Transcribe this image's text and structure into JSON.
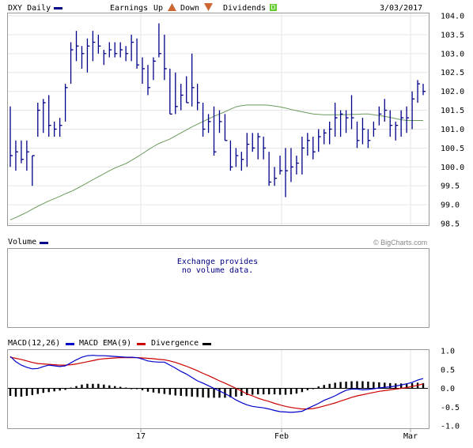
{
  "header": {
    "symbol": "DXY Daily",
    "earnings_label": "Earnings",
    "up_label": "Up",
    "down_label": "Down",
    "dividends_label": "Dividends",
    "up_badge": "E",
    "down_badge": "E",
    "div_badge": "D",
    "date": "3/03/2017"
  },
  "volume_panel": {
    "title": "Volume",
    "message_line1": "Exchange provides",
    "message_line2": "no volume data.",
    "brand": "© BigCharts.com"
  },
  "macd_panel": {
    "title": "MACD(12,26)",
    "macd_label": "MACD",
    "ema_label": "EMA(9)",
    "divergence_label": "Divergence"
  },
  "colors": {
    "price_bar": "#00008b",
    "moving_average": "#6b9a5b",
    "macd": "#0000cc",
    "ema": "#cc0000",
    "divergence": "#000000",
    "earnings_up": "#cc6633",
    "dividend": "#66cc33"
  },
  "chart_data": [
    {
      "type": "ohlc",
      "name": "price",
      "ylim": [
        98.5,
        104.0
      ],
      "yticks": [
        "104.0",
        "103.5",
        "103.0",
        "102.5",
        "102.0",
        "101.5",
        "101.0",
        "100.5",
        "100.0",
        "99.5",
        "99.0",
        "98.5"
      ],
      "xticks": [
        "17",
        "Feb",
        "Mar"
      ],
      "bars": [
        [
          101.6,
          100.0,
          100.3
        ],
        [
          100.7,
          99.9,
          100.4
        ],
        [
          100.7,
          100.1,
          100.2
        ],
        [
          100.7,
          99.9,
          100.4
        ],
        [
          100.3,
          99.5,
          100.3
        ],
        [
          101.7,
          100.8,
          101.5
        ],
        [
          101.8,
          100.9,
          101.7
        ],
        [
          101.9,
          100.8,
          101.1
        ],
        [
          101.2,
          100.8,
          101.0
        ],
        [
          101.3,
          100.8,
          101.1
        ],
        [
          102.2,
          101.2,
          102.1
        ],
        [
          103.3,
          102.2,
          103.1
        ],
        [
          103.6,
          102.8,
          103.2
        ],
        [
          103.2,
          102.6,
          103.0
        ],
        [
          103.4,
          102.5,
          103.2
        ],
        [
          103.6,
          102.8,
          103.3
        ],
        [
          103.5,
          103.0,
          103.2
        ],
        [
          103.1,
          102.7,
          103.0
        ],
        [
          103.3,
          102.9,
          103.1
        ],
        [
          103.3,
          102.9,
          103.0
        ],
        [
          103.3,
          102.9,
          103.1
        ],
        [
          103.2,
          102.8,
          103.0
        ],
        [
          103.5,
          102.8,
          103.3
        ],
        [
          103.4,
          102.6,
          102.7
        ],
        [
          102.9,
          102.2,
          102.6
        ],
        [
          102.7,
          101.9,
          102.1
        ],
        [
          102.9,
          102.3,
          102.8
        ],
        [
          103.8,
          102.9,
          103.0
        ],
        [
          103.5,
          102.3,
          102.6
        ],
        [
          102.6,
          101.4,
          101.4
        ],
        [
          102.5,
          101.4,
          101.6
        ],
        [
          102.2,
          101.5,
          101.9
        ],
        [
          102.4,
          101.7,
          101.7
        ],
        [
          103.0,
          101.6,
          102.1
        ],
        [
          102.2,
          101.5,
          101.7
        ],
        [
          101.7,
          100.8,
          101.0
        ],
        [
          101.4,
          100.9,
          101.2
        ],
        [
          101.6,
          100.3,
          100.4
        ],
        [
          101.5,
          100.9,
          101.2
        ],
        [
          101.4,
          100.7,
          100.7
        ],
        [
          100.7,
          99.9,
          100.0
        ],
        [
          100.5,
          100.0,
          100.3
        ],
        [
          100.4,
          99.9,
          100.2
        ],
        [
          100.9,
          100.0,
          100.6
        ],
        [
          100.9,
          100.4,
          100.5
        ],
        [
          100.9,
          100.2,
          100.8
        ],
        [
          100.8,
          100.2,
          100.5
        ],
        [
          100.4,
          99.5,
          99.6
        ],
        [
          100.0,
          99.5,
          99.7
        ],
        [
          100.3,
          99.8,
          99.9
        ],
        [
          100.5,
          99.2,
          99.9
        ],
        [
          100.5,
          99.6,
          100.0
        ],
        [
          100.3,
          99.8,
          100.1
        ],
        [
          100.8,
          99.8,
          100.5
        ],
        [
          100.9,
          100.3,
          100.7
        ],
        [
          100.8,
          100.2,
          100.4
        ],
        [
          101.0,
          100.4,
          100.8
        ],
        [
          101.0,
          100.6,
          100.9
        ],
        [
          101.2,
          100.6,
          101.0
        ],
        [
          101.7,
          100.8,
          101.3
        ],
        [
          101.5,
          100.8,
          101.4
        ],
        [
          101.5,
          100.9,
          101.3
        ],
        [
          101.9,
          101.0,
          101.3
        ],
        [
          101.2,
          100.5,
          100.7
        ],
        [
          101.3,
          100.6,
          101.0
        ],
        [
          101.0,
          100.5,
          100.7
        ],
        [
          101.2,
          100.8,
          101.0
        ],
        [
          101.6,
          101.1,
          101.4
        ],
        [
          101.8,
          101.2,
          101.5
        ],
        [
          101.5,
          100.8,
          101.1
        ],
        [
          101.2,
          100.7,
          101.1
        ],
        [
          101.5,
          100.8,
          101.3
        ],
        [
          101.6,
          100.9,
          101.3
        ],
        [
          102.0,
          101.0,
          101.8
        ],
        [
          102.3,
          101.7,
          102.2
        ],
        [
          102.2,
          101.9,
          102.0
        ]
      ],
      "moving_average": [
        98.6,
        98.66,
        98.73,
        98.8,
        98.88,
        98.96,
        99.03,
        99.1,
        99.16,
        99.22,
        99.29,
        99.35,
        99.42,
        99.5,
        99.58,
        99.66,
        99.74,
        99.82,
        99.9,
        99.97,
        100.03,
        100.09,
        100.17,
        100.26,
        100.35,
        100.45,
        100.54,
        100.62,
        100.68,
        100.74,
        100.82,
        100.9,
        100.98,
        101.06,
        101.13,
        101.2,
        101.27,
        101.34,
        101.4,
        101.46,
        101.53,
        101.59,
        101.62,
        101.64,
        101.64,
        101.64,
        101.64,
        101.63,
        101.61,
        101.59,
        101.56,
        101.52,
        101.49,
        101.46,
        101.43,
        101.4,
        101.39,
        101.38,
        101.38,
        101.38,
        101.38,
        101.38,
        101.39,
        101.39,
        101.4,
        101.4,
        101.38,
        101.36,
        101.34,
        101.31,
        101.28,
        101.25,
        101.23,
        101.23,
        101.23,
        101.23
      ]
    },
    {
      "type": "macd",
      "ylim": [
        -1.0,
        1.0
      ],
      "yticks": [
        "1.0",
        "0.5",
        "0.0",
        "-0.5",
        "-1.0"
      ],
      "macd": [
        0.85,
        0.71,
        0.62,
        0.56,
        0.52,
        0.53,
        0.58,
        0.62,
        0.6,
        0.58,
        0.6,
        0.68,
        0.76,
        0.83,
        0.87,
        0.88,
        0.87,
        0.87,
        0.86,
        0.85,
        0.84,
        0.83,
        0.83,
        0.82,
        0.78,
        0.73,
        0.71,
        0.7,
        0.7,
        0.62,
        0.54,
        0.45,
        0.38,
        0.29,
        0.2,
        0.14,
        0.07,
        0.0,
        -0.07,
        -0.14,
        -0.22,
        -0.31,
        -0.38,
        -0.44,
        -0.48,
        -0.5,
        -0.52,
        -0.55,
        -0.59,
        -0.62,
        -0.63,
        -0.64,
        -0.63,
        -0.61,
        -0.54,
        -0.47,
        -0.4,
        -0.32,
        -0.26,
        -0.2,
        -0.12,
        -0.05,
        -0.02,
        -0.02,
        -0.04,
        -0.03,
        -0.01,
        0.01,
        0.03,
        0.04,
        0.06,
        0.09,
        0.12,
        0.16,
        0.22,
        0.26
      ],
      "ema": [
        0.83,
        0.8,
        0.77,
        0.73,
        0.69,
        0.66,
        0.65,
        0.64,
        0.63,
        0.62,
        0.62,
        0.63,
        0.65,
        0.68,
        0.71,
        0.74,
        0.77,
        0.79,
        0.8,
        0.81,
        0.82,
        0.82,
        0.82,
        0.82,
        0.81,
        0.8,
        0.79,
        0.77,
        0.76,
        0.73,
        0.69,
        0.64,
        0.59,
        0.53,
        0.47,
        0.4,
        0.34,
        0.27,
        0.2,
        0.14,
        0.07,
        0.0,
        -0.07,
        -0.15,
        -0.2,
        -0.26,
        -0.31,
        -0.35,
        -0.4,
        -0.44,
        -0.48,
        -0.51,
        -0.53,
        -0.55,
        -0.55,
        -0.54,
        -0.51,
        -0.47,
        -0.43,
        -0.39,
        -0.34,
        -0.29,
        -0.24,
        -0.2,
        -0.17,
        -0.14,
        -0.11,
        -0.08,
        -0.06,
        -0.04,
        -0.02,
        0.0,
        0.02,
        0.05,
        0.08,
        0.12
      ],
      "divergence": [
        -0.2,
        -0.22,
        -0.22,
        -0.2,
        -0.18,
        -0.15,
        -0.12,
        -0.1,
        -0.08,
        -0.06,
        -0.04,
        0.02,
        0.06,
        0.1,
        0.12,
        0.12,
        0.12,
        0.1,
        0.08,
        0.06,
        0.04,
        0.02,
        0.0,
        -0.02,
        -0.05,
        -0.09,
        -0.11,
        -0.13,
        -0.15,
        -0.17,
        -0.19,
        -0.2,
        -0.21,
        -0.22,
        -0.23,
        -0.24,
        -0.25,
        -0.25,
        -0.25,
        -0.25,
        -0.24,
        -0.22,
        -0.2,
        -0.18,
        -0.17,
        -0.16,
        -0.16,
        -0.16,
        -0.16,
        -0.17,
        -0.17,
        -0.16,
        -0.14,
        -0.1,
        -0.05,
        0.0,
        0.05,
        0.09,
        0.12,
        0.15,
        0.17,
        0.18,
        0.19,
        0.19,
        0.19,
        0.18,
        0.17,
        0.16,
        0.15,
        0.14,
        0.13,
        0.13,
        0.13,
        0.14,
        0.15,
        0.14
      ]
    }
  ]
}
